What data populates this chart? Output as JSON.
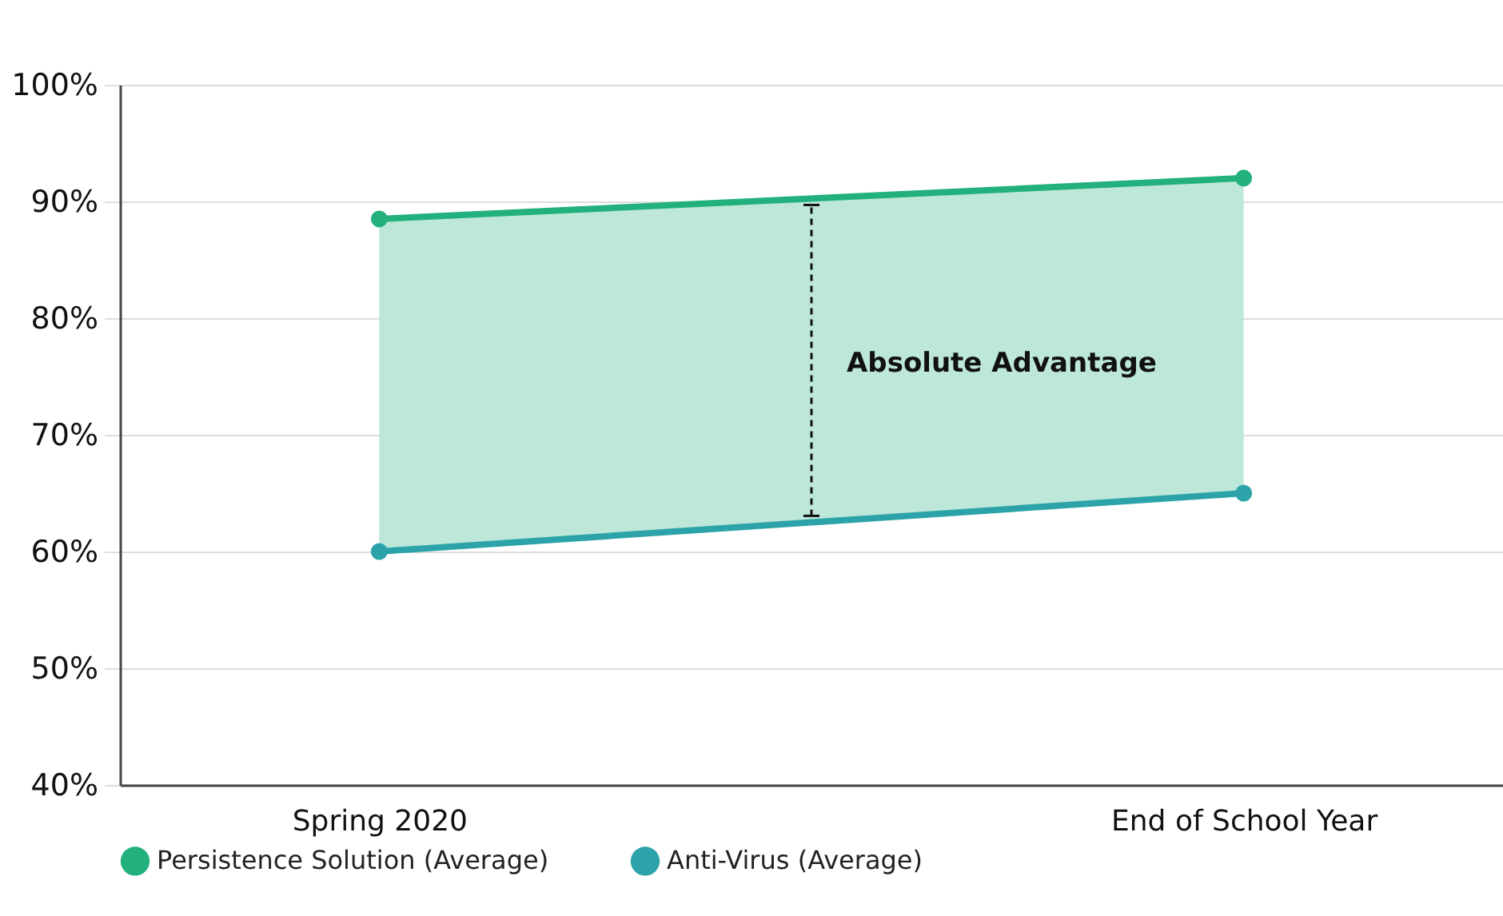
{
  "chart_data": {
    "type": "line",
    "categories": [
      "Spring 2020",
      "End of School Year"
    ],
    "series": [
      {
        "name": "Persistence Solution (Average)",
        "color": "#22b07d",
        "values": [
          88.5,
          92
        ],
        "lower": [
          60,
          65
        ],
        "upper": [
          88.5,
          92
        ]
      },
      {
        "name": "Anti-Virus (Average)",
        "color": "#2ba3a9",
        "values": [
          60,
          65
        ]
      }
    ],
    "ylim": [
      40,
      100
    ],
    "yticks": [
      {
        "value": 40,
        "label": "40%"
      },
      {
        "value": 50,
        "label": "50%"
      },
      {
        "value": 60,
        "label": "60%"
      },
      {
        "value": 70,
        "label": "70%"
      },
      {
        "value": 80,
        "label": "80%"
      },
      {
        "value": 90,
        "label": "90%"
      },
      {
        "value": 100,
        "label": "100%"
      }
    ],
    "grid": "y",
    "marker": "circle",
    "legend": "bottom left",
    "annotations": [
      "Absolute Advantage"
    ]
  }
}
